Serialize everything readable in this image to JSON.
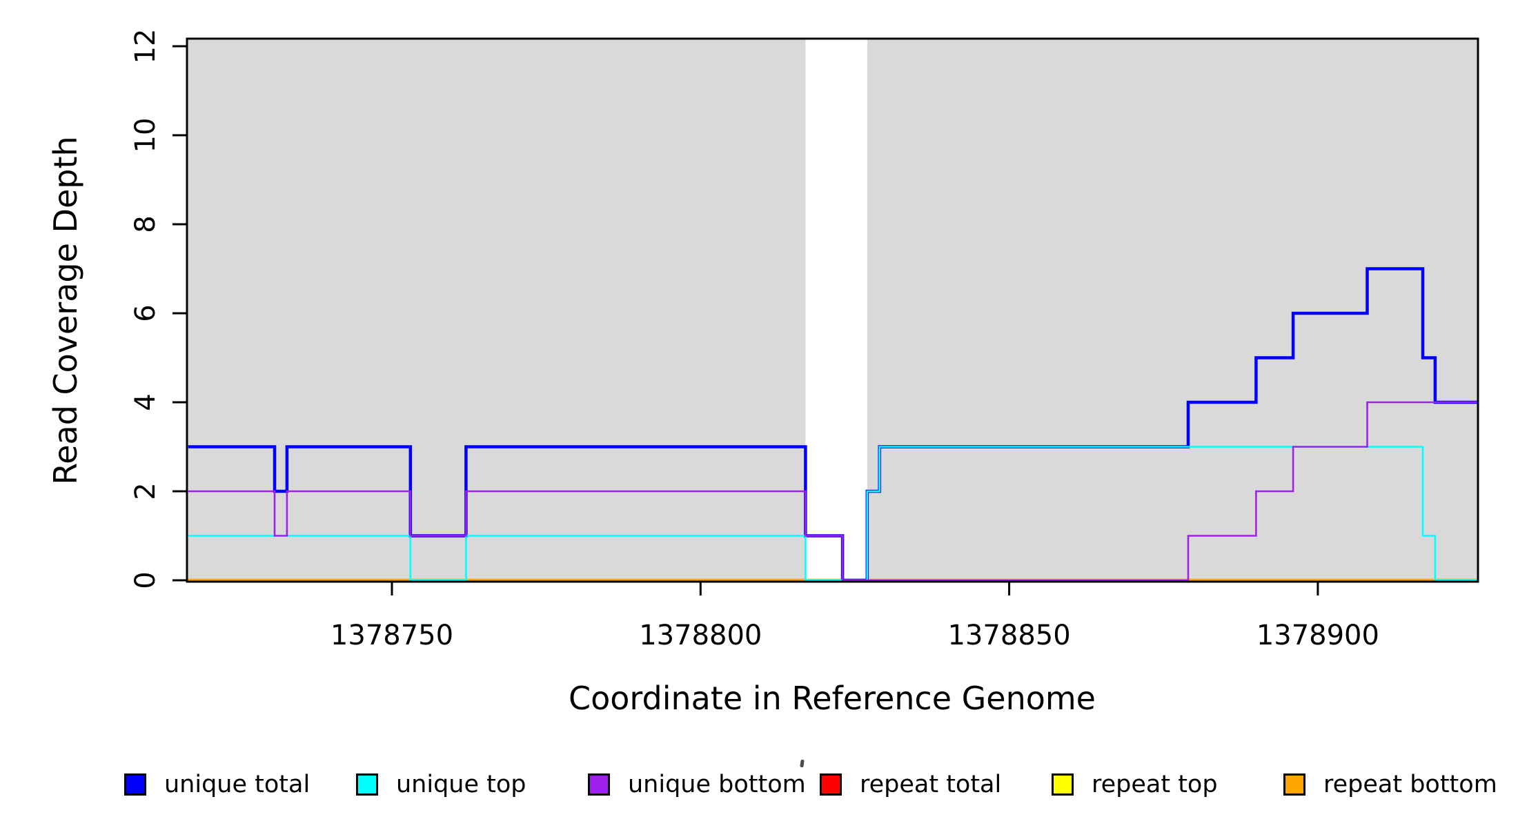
{
  "figure": {
    "background_color": "#FFFFFF",
    "plot_band_color": "#D9D9D9"
  },
  "chart_data": {
    "type": "line",
    "subtype": "step-coverage",
    "title": "",
    "xlabel": "Coordinate in Reference Genome",
    "ylabel": "Read Coverage Depth",
    "xlim": [
      1378717,
      1378926
    ],
    "ylim": [
      0,
      12.2
    ],
    "x_ticks": [
      1378750,
      1378800,
      1378850,
      1378900
    ],
    "y_ticks": [
      0,
      2,
      4,
      6,
      8,
      10,
      12
    ],
    "grid": false,
    "y_tick_labels_rotated": true,
    "shaded_regions": [
      {
        "name": "shaded-band-left",
        "x0": 1378717,
        "x1": 1378817,
        "color": "#D9D9D9"
      },
      {
        "name": "shaded-band-right",
        "x0": 1378827,
        "x1": 1378926,
        "color": "#D9D9D9"
      }
    ],
    "series": [
      {
        "name": "unique total",
        "color": "#0000FF",
        "line_width": 4.5,
        "steps": [
          [
            1378717,
            3
          ],
          [
            1378731,
            2
          ],
          [
            1378733,
            3
          ],
          [
            1378753,
            1
          ],
          [
            1378762,
            3
          ],
          [
            1378817,
            1
          ],
          [
            1378823,
            0
          ],
          [
            1378827,
            2
          ],
          [
            1378829,
            3
          ],
          [
            1378879,
            4
          ],
          [
            1378890,
            5
          ],
          [
            1378896,
            6
          ],
          [
            1378908,
            7
          ],
          [
            1378917,
            5
          ],
          [
            1378919,
            4
          ],
          [
            1378926,
            4
          ]
        ]
      },
      {
        "name": "unique top",
        "color": "#00FFFF",
        "line_width": 2.6,
        "steps": [
          [
            1378717,
            1
          ],
          [
            1378753,
            0
          ],
          [
            1378762,
            1
          ],
          [
            1378817,
            0
          ],
          [
            1378827,
            2
          ],
          [
            1378829,
            3
          ],
          [
            1378917,
            1
          ],
          [
            1378919,
            0
          ],
          [
            1378926,
            0
          ]
        ]
      },
      {
        "name": "unique bottom",
        "color": "#A020F0",
        "line_width": 2.6,
        "steps": [
          [
            1378717,
            2
          ],
          [
            1378731,
            1
          ],
          [
            1378733,
            2
          ],
          [
            1378753,
            1
          ],
          [
            1378762,
            2
          ],
          [
            1378817,
            1
          ],
          [
            1378823,
            0
          ],
          [
            1378879,
            1
          ],
          [
            1378890,
            2
          ],
          [
            1378896,
            3
          ],
          [
            1378908,
            4
          ],
          [
            1378926,
            4
          ]
        ]
      },
      {
        "name": "repeat total",
        "color": "#FF0000",
        "line_width": 3,
        "steps": [
          [
            1378717,
            0
          ],
          [
            1378926,
            0
          ]
        ]
      },
      {
        "name": "repeat top",
        "color": "#FFFF00",
        "line_width": 3,
        "steps": [
          [
            1378717,
            0
          ],
          [
            1378926,
            0
          ]
        ]
      },
      {
        "name": "repeat bottom",
        "color": "#FFA500",
        "line_width": 4.5,
        "steps": [
          [
            1378717,
            0
          ],
          [
            1378926,
            0
          ]
        ]
      }
    ],
    "draw_order": [
      "repeat total",
      "repeat top",
      "repeat bottom",
      "unique total",
      "unique top",
      "unique bottom"
    ],
    "legend": {
      "position": "bottom",
      "entries": [
        {
          "label": "unique total",
          "color": "#0000FF"
        },
        {
          "label": "unique top",
          "color": "#00FFFF"
        },
        {
          "label": "unique bottom",
          "color": "#A020F0"
        },
        {
          "label": "repeat total",
          "color": "#FF0000"
        },
        {
          "label": "repeat top",
          "color": "#FFFF00"
        },
        {
          "label": "repeat bottom",
          "color": "#FFA500"
        }
      ]
    }
  }
}
